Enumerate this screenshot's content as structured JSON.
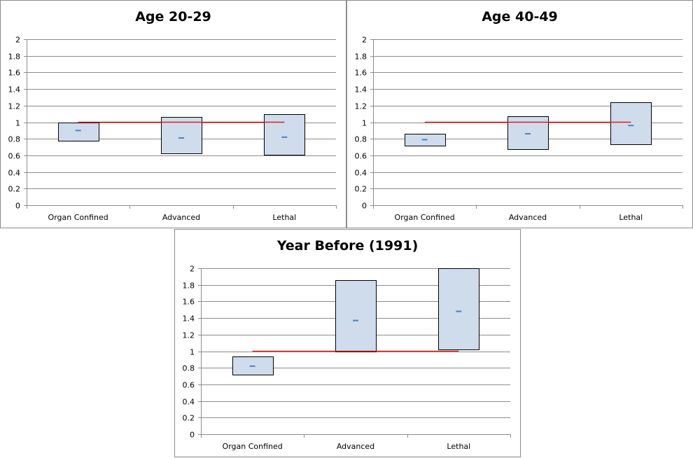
{
  "chart_data": [
    {
      "type": "box",
      "title": "Age 20-29",
      "categories": [
        "Organ Confined",
        "Advanced",
        "Lethal"
      ],
      "ylim": [
        0,
        2
      ],
      "yticks": [
        "0",
        "0.2",
        "0.4",
        "0.6",
        "0.8",
        "1",
        "1.2",
        "1.4",
        "1.6",
        "1.8",
        "2"
      ],
      "low": [
        0.78,
        0.62,
        0.61
      ],
      "high": [
        1.0,
        1.06,
        1.1
      ],
      "estimate": [
        0.9,
        0.81,
        0.82
      ],
      "reference_line": 1,
      "grid": true
    },
    {
      "type": "box",
      "title": "Age 40-49",
      "categories": [
        "Organ Confined",
        "Advanced",
        "Lethal"
      ],
      "ylim": [
        0,
        2
      ],
      "yticks": [
        "0",
        "0.2",
        "0.4",
        "0.6",
        "0.8",
        "1",
        "1.2",
        "1.4",
        "1.6",
        "1.8",
        "2"
      ],
      "low": [
        0.72,
        0.67,
        0.73
      ],
      "high": [
        0.86,
        1.07,
        1.24
      ],
      "estimate": [
        0.79,
        0.86,
        0.96
      ],
      "reference_line": 1,
      "grid": true
    },
    {
      "type": "box",
      "title": "Year Before (1991)",
      "categories": [
        "Organ Confined",
        "Advanced",
        "Lethal"
      ],
      "ylim": [
        0,
        2
      ],
      "yticks": [
        "0",
        "0.2",
        "0.4",
        "0.6",
        "0.8",
        "1",
        "1.2",
        "1.4",
        "1.6",
        "1.8",
        "2"
      ],
      "low": [
        0.72,
        1.0,
        1.02
      ],
      "high": [
        0.94,
        1.86,
        2.0
      ],
      "estimate": [
        0.82,
        1.37,
        1.48
      ],
      "reference_line": 1,
      "grid": true
    }
  ],
  "colors": {
    "box_fill": "#cfdcec",
    "box_stroke": "#000000",
    "estimate_mark": "#4f81bd",
    "reference_line": "#e0201a",
    "grid": "#8c8c8c",
    "axis": "#8c8c8c"
  }
}
